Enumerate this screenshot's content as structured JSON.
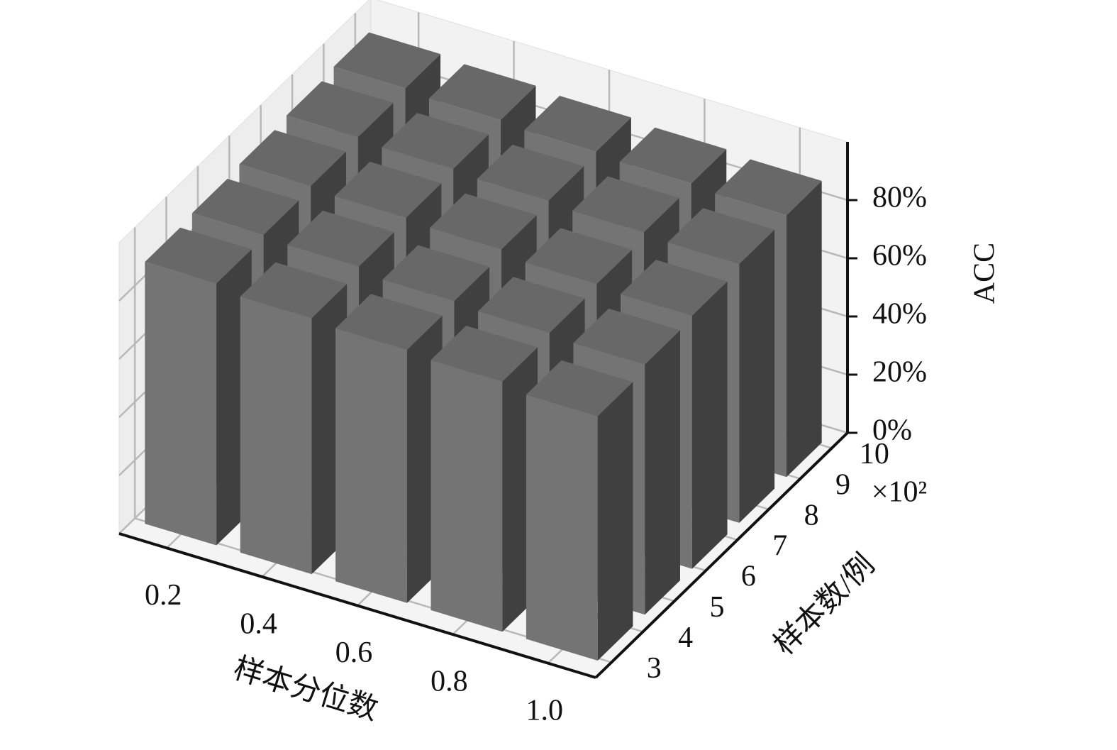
{
  "chart_data": {
    "type": "bar3d",
    "x_label": "样本分位数",
    "y_label": "样本数/例",
    "z_label": "ACC",
    "x": [
      0.2,
      0.4,
      0.6,
      0.8,
      1.0
    ],
    "y": [
      3.5,
      5,
      6.5,
      8,
      9.5
    ],
    "values": [
      [
        90,
        88,
        87,
        86,
        84
      ],
      [
        91,
        90,
        88,
        87,
        86
      ],
      [
        92,
        91,
        90,
        88,
        87
      ],
      [
        93,
        92,
        91,
        90,
        89
      ],
      [
        94,
        93,
        92,
        91,
        90
      ]
    ],
    "xlim": [
      0.1,
      1.1
    ],
    "ylim": [
      2.5,
      10.5
    ],
    "zlim": [
      0,
      100
    ],
    "xticks": [
      0.2,
      0.4,
      0.6,
      0.8,
      {
        "value": 1,
        "label": "1.0"
      }
    ],
    "yticks": [
      3,
      4,
      5,
      6,
      7,
      8,
      9,
      10
    ],
    "y_offset_label": "×10²",
    "zticks": [
      {
        "value": 0,
        "label": "0%"
      },
      {
        "value": 20,
        "label": "20%"
      },
      {
        "value": 40,
        "label": "40%"
      },
      {
        "value": 60,
        "label": "60%"
      },
      {
        "value": 80,
        "label": "80%"
      }
    ],
    "grid": true,
    "colors": {
      "front": "#747474",
      "side": "#404040",
      "top": "#686868"
    }
  }
}
